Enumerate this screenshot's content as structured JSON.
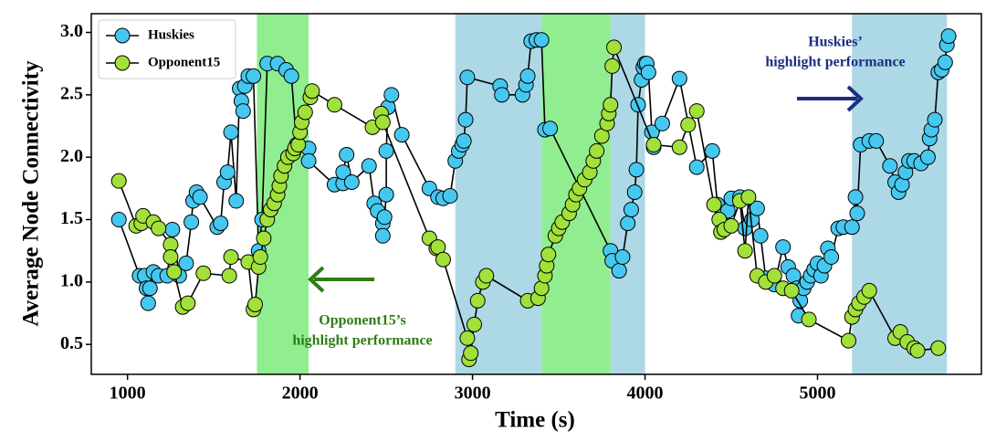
{
  "chart_data": {
    "type": "line",
    "xlabel": "Time (s)",
    "ylabel": "Average Node Connectivity",
    "xlim": [
      790,
      5950
    ],
    "ylim": [
      0.26,
      3.15
    ],
    "xticks": [
      1000,
      2000,
      3000,
      4000,
      5000
    ],
    "yticks": [
      0.5,
      {
        "value": 1,
        "label": "1.0"
      },
      1.5,
      {
        "value": 2,
        "label": "2.0"
      },
      2.5,
      {
        "value": 3,
        "label": "3.0"
      }
    ],
    "grid": false,
    "legend": "upper left",
    "spans": [
      {
        "start": 1750,
        "end": 2050,
        "color": "#90ee90"
      },
      {
        "start": 2900,
        "end": 3400,
        "color": "#add8e6"
      },
      {
        "start": 3400,
        "end": 3800,
        "color": "#90ee90"
      },
      {
        "start": 3800,
        "end": 4000,
        "color": "#add8e6"
      },
      {
        "start": 5200,
        "end": 5750,
        "color": "#add8e6"
      }
    ],
    "annotations": [
      {
        "lines": [
          "Huskies’",
          "highlight performance"
        ],
        "color": "#1a2f80"
      },
      {
        "lines": [
          "Opponent15’s",
          "highlight performance"
        ],
        "color": "#2e7d14"
      }
    ],
    "series": [
      {
        "name": "Huskies",
        "color": "#45c8f0",
        "x": [
          950,
          1070,
          1100,
          1110,
          1120,
          1130,
          1150,
          1180,
          1230,
          1260,
          1300,
          1340,
          1370,
          1380,
          1400,
          1420,
          1520,
          1540,
          1560,
          1580,
          1600,
          1630,
          1650,
          1660,
          1670,
          1680,
          1700,
          1730,
          1760,
          1780,
          1810,
          1870,
          1920,
          1950,
          1980,
          2050,
          2050,
          2200,
          2250,
          2250,
          2270,
          2300,
          2400,
          2430,
          2450,
          2480,
          2480,
          2490,
          2500,
          2500,
          2510,
          2530,
          2590,
          2750,
          2800,
          2830,
          2870,
          2900,
          2920,
          2940,
          2950,
          2960,
          2970,
          3160,
          3170,
          3290,
          3310,
          3320,
          3340,
          3370,
          3400,
          3420,
          3450,
          3800,
          3810,
          3850,
          3870,
          3900,
          3920,
          3940,
          3950,
          3960,
          3980,
          3990,
          4000,
          4010,
          4020,
          4040,
          4050,
          4100,
          4200,
          4300,
          4390,
          4420,
          4450,
          4480,
          4500,
          4550,
          4580,
          4620,
          4650,
          4670,
          4700,
          4750,
          4800,
          4830,
          4860,
          4880,
          4890,
          4900,
          4920,
          4940,
          4960,
          4980,
          5000,
          5020,
          5040,
          5060,
          5080,
          5120,
          5150,
          5200,
          5220,
          5230,
          5250,
          5300,
          5340,
          5420,
          5450,
          5470,
          5490,
          5510,
          5530,
          5560,
          5600,
          5640,
          5650,
          5660,
          5680,
          5700,
          5720,
          5740,
          5750,
          5760
        ],
        "values": [
          1.5,
          1.05,
          1.05,
          0.95,
          0.83,
          0.95,
          1.08,
          1.05,
          1.05,
          1.42,
          1.05,
          1.15,
          1.48,
          1.65,
          1.72,
          1.68,
          1.44,
          1.47,
          1.8,
          1.88,
          2.2,
          1.65,
          2.55,
          2.45,
          2.37,
          2.57,
          2.65,
          2.65,
          1.25,
          1.5,
          2.75,
          2.75,
          2.7,
          2.65,
          2.1,
          2.07,
          1.97,
          1.78,
          1.79,
          1.88,
          2.02,
          1.8,
          1.93,
          1.63,
          1.57,
          1.47,
          1.37,
          1.52,
          1.7,
          2.05,
          2.4,
          2.5,
          2.18,
          1.75,
          1.68,
          1.67,
          1.69,
          1.97,
          2.05,
          2.1,
          2.13,
          2.3,
          2.64,
          2.57,
          2.5,
          2.5,
          2.58,
          2.65,
          2.93,
          2.94,
          2.94,
          2.22,
          2.23,
          1.25,
          1.17,
          1.09,
          1.2,
          1.47,
          1.58,
          1.72,
          1.9,
          2.42,
          2.62,
          2.72,
          2.75,
          2.75,
          2.68,
          2.2,
          2.08,
          2.27,
          2.63,
          1.92,
          2.05,
          1.62,
          1.55,
          1.57,
          1.67,
          1.68,
          1.43,
          1.5,
          1.59,
          1.37,
          1.03,
          0.98,
          1.28,
          1.12,
          1.05,
          0.95,
          0.73,
          0.85,
          0.95,
          1.0,
          1.05,
          1.1,
          1.15,
          1.05,
          1.13,
          1.27,
          1.2,
          1.43,
          1.44,
          1.44,
          1.68,
          1.55,
          2.1,
          2.13,
          2.13,
          1.93,
          1.8,
          1.72,
          1.78,
          1.88,
          1.97,
          1.97,
          1.95,
          2.0,
          2.15,
          2.22,
          2.3,
          2.68,
          2.7,
          2.76,
          2.9,
          2.97
        ]
      },
      {
        "name": "Opponent15",
        "color": "#a2e03a",
        "x": [
          950,
          1050,
          1080,
          1090,
          1150,
          1180,
          1250,
          1250,
          1270,
          1320,
          1350,
          1440,
          1590,
          1600,
          1700,
          1730,
          1740,
          1760,
          1770,
          1790,
          1810,
          1830,
          1850,
          1870,
          1880,
          1890,
          1910,
          1930,
          1960,
          1970,
          1990,
          2000,
          2010,
          2030,
          2060,
          2070,
          2200,
          2420,
          2470,
          2480,
          2750,
          2790,
          2800,
          2830,
          2970,
          2980,
          2990,
          3010,
          3030,
          3060,
          3080,
          3320,
          3380,
          3400,
          3420,
          3430,
          3440,
          3480,
          3500,
          3520,
          3560,
          3580,
          3600,
          3620,
          3650,
          3680,
          3700,
          3720,
          3750,
          3780,
          3790,
          3800,
          3810,
          3820,
          4050,
          4200,
          4250,
          4300,
          4400,
          4430,
          4440,
          4460,
          4500,
          4550,
          4580,
          4600,
          4650,
          4700,
          4750,
          4800,
          4850,
          4950,
          5180,
          5200,
          5220,
          5240,
          5270,
          5300,
          5450,
          5480,
          5520,
          5560,
          5580,
          5700
        ],
        "values": [
          1.81,
          1.45,
          1.47,
          1.53,
          1.48,
          1.43,
          1.3,
          1.2,
          1.08,
          0.8,
          0.83,
          1.07,
          1.05,
          1.2,
          1.16,
          0.78,
          0.82,
          1.12,
          1.2,
          1.35,
          1.5,
          1.58,
          1.63,
          1.7,
          1.77,
          1.85,
          1.93,
          2.0,
          2.03,
          2.07,
          2.1,
          2.2,
          2.28,
          2.36,
          2.48,
          2.53,
          2.42,
          2.24,
          2.35,
          2.28,
          1.35,
          1.27,
          1.28,
          1.18,
          0.55,
          0.38,
          0.43,
          0.66,
          0.85,
          1.0,
          1.05,
          0.85,
          0.87,
          0.95,
          1.05,
          1.13,
          1.22,
          1.37,
          1.43,
          1.48,
          1.55,
          1.62,
          1.7,
          1.75,
          1.82,
          1.88,
          1.97,
          2.05,
          2.17,
          2.27,
          2.35,
          2.42,
          2.73,
          2.88,
          2.1,
          2.08,
          2.26,
          2.37,
          1.62,
          1.5,
          1.4,
          1.42,
          1.45,
          1.65,
          1.25,
          1.68,
          1.05,
          1.0,
          1.05,
          0.95,
          0.93,
          0.7,
          0.53,
          0.72,
          0.78,
          0.83,
          0.88,
          0.93,
          0.55,
          0.6,
          0.52,
          0.47,
          0.45,
          0.47
        ]
      }
    ]
  }
}
